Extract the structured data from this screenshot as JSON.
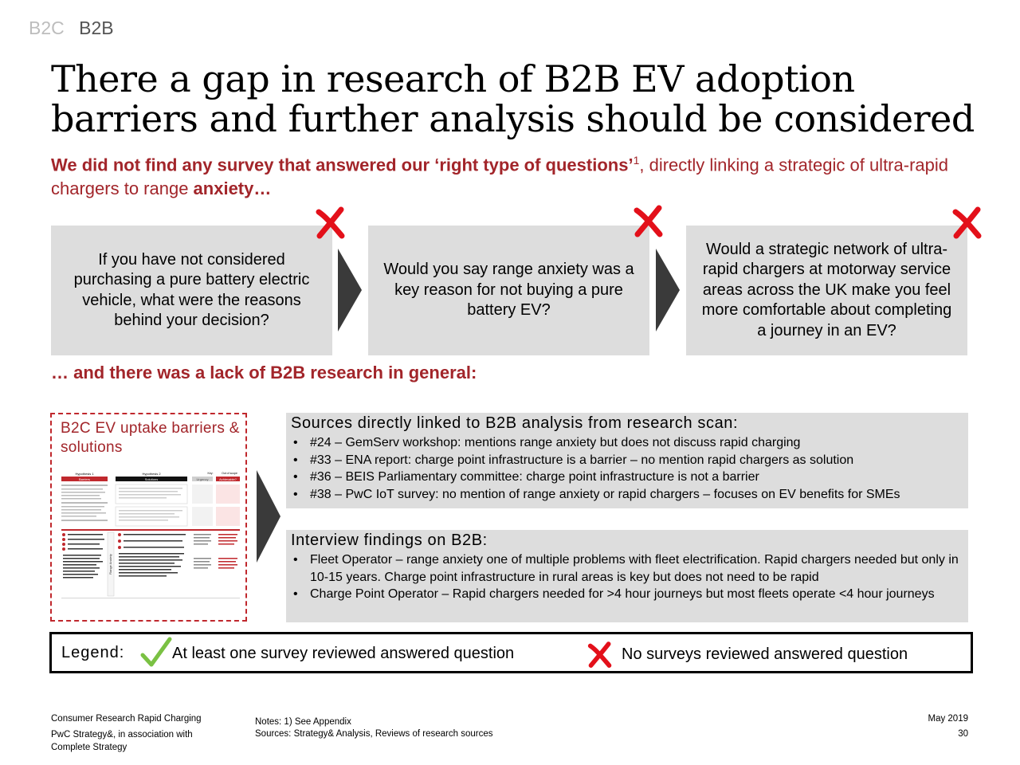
{
  "nav": {
    "items": [
      "B2C",
      "B2B"
    ],
    "active": "B2B"
  },
  "title": "There a gap in research of B2B EV adoption barriers and further analysis should be considered",
  "subtitle": {
    "bold": "We did not find any survey that answered our ‘right type of questions’",
    "sup": "1",
    "normal": ", directly linking a strategic of ultra-rapid chargers to range ",
    "bold_end": "anxiety…"
  },
  "questions": [
    {
      "text": "If you have not considered purchasing a pure battery electric vehicle, what were the reasons behind your decision?",
      "status_icon": "cross-icon"
    },
    {
      "text": "Would you say range anxiety was a key reason for not buying a pure battery EV?",
      "status_icon": "cross-icon"
    },
    {
      "text": "Would a strategic network of ultra-rapid chargers at motorway service areas across the UK make you feel more comfortable about completing a journey in an EV?",
      "status_icon": "cross-icon"
    }
  ],
  "lack_heading": "… and there was a lack of B2B research in general:",
  "b2c_box": {
    "label": "B2C EV uptake barriers & solutions",
    "thumbnail": {
      "headers": [
        "Hypothesis 1",
        "Hypothesis 2",
        "Key:",
        "Out of scope"
      ],
      "columns": [
        "Barriers",
        "Solutions",
        "Urgency",
        "Achievable?"
      ],
      "side_label": "Range Anxiety"
    }
  },
  "sources": {
    "heading": "Sources directly linked to B2B analysis from research scan:",
    "items": [
      "#24 – GemServ workshop: mentions range anxiety but does not discuss rapid charging",
      "#33 – ENA report: charge point infrastructure is a barrier – no mention rapid chargers as solution",
      "#36 – BEIS Parliamentary committee: charge point infrastructure is not a barrier",
      "#38 – PwC IoT survey: no mention of range anxiety or rapid chargers – focuses on EV benefits for SMEs"
    ]
  },
  "interviews": {
    "heading": "Interview findings on B2B:",
    "items": [
      "Fleet Operator – range anxiety one of multiple problems with fleet electrification. Rapid chargers needed but only in 10-15 years. Charge point infrastructure in rural areas is key but does not need to be rapid",
      "Charge Point Operator – Rapid chargers needed for >4 hour journeys but most fleets operate <4 hour journeys"
    ]
  },
  "legend": {
    "label": "Legend:",
    "yes_text": "At least one survey reviewed answered question",
    "no_text": "No surveys reviewed answered question",
    "yes_icon": "check-icon",
    "no_icon": "cross-icon"
  },
  "footer": {
    "left1": "Consumer Research Rapid Charging",
    "left2": "PwC Strategy&, in association with Complete Strategy",
    "notes": "Notes: 1) See Appendix",
    "sources": "Sources: Strategy& Analysis, Reviews of research sources",
    "date": "May 2019",
    "page": "30"
  },
  "colors": {
    "accent_red": "#a2252a",
    "cross_red": "#e3101a",
    "check_green": "#7ac143",
    "panel_grey": "#dddddd",
    "arrow_grey": "#3a3a3a"
  }
}
